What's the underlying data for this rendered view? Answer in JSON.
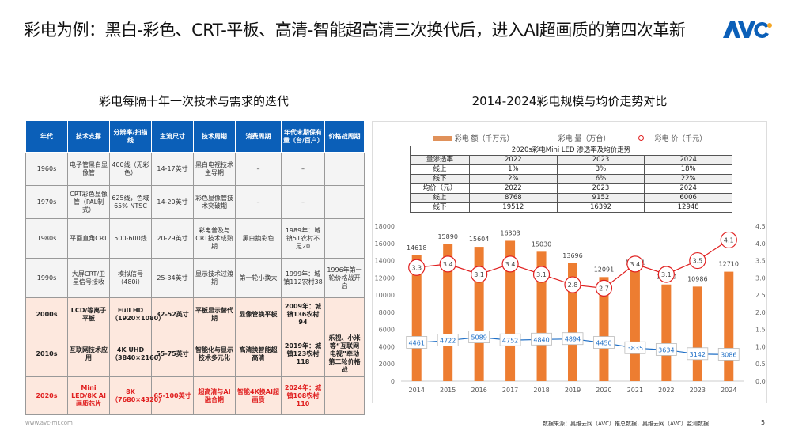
{
  "header": {
    "title": "彩电为例：黑白-彩色、CRT-平板、高清-智能超高清三次换代后，进入AI超画质的第四次革新",
    "logo_text": "AVC",
    "brand_color": "#0b5fb8",
    "logo_dot_color": "#f5a623"
  },
  "left_panel": {
    "subtitle": "彩电每隔十年一次技术与需求的迭代",
    "table": {
      "header_color": "#0b5fb8",
      "columns": [
        "年代",
        "技术支撑",
        "分辨率/扫描线",
        "主流尺寸",
        "技术周期",
        "消费周期",
        "年代末期保有量（台/百户）",
        "价格战周期"
      ],
      "rows": [
        {
          "cells": [
            "1960s",
            "电子管黑白显像管",
            "400线（无彩色）",
            "14-17英寸",
            "黑白电视技术主导期",
            "–",
            "–",
            ""
          ],
          "style": "gray"
        },
        {
          "cells": [
            "1970s",
            "CRT彩色显像管（PAL制式）",
            "625线，色域65% NTSC",
            "14-20英寸",
            "彩色显像管技术突破期",
            "–",
            "–",
            ""
          ],
          "style": "gray"
        },
        {
          "cells": [
            "1980s",
            "平面直角CRT",
            "500-600线",
            "20-29英寸",
            "彩电普及与CRT技术成熟期",
            "黑白换彩色",
            "1989年：城镇51农村不足20",
            ""
          ],
          "style": "gray"
        },
        {
          "cells": [
            "1990s",
            "大屏CRT/卫星信号接收",
            "模拟信号（480i）",
            "25-34英寸",
            "显示技术过渡期",
            "第一轮小换大",
            "1999年：城镇112农村38",
            "1996年第一轮价格战开启"
          ],
          "style": "gray"
        },
        {
          "cells": [
            "2000s",
            "LCD/等离子平板",
            "Full HD（1920×1080）",
            "32-52英寸",
            "平板显示替代期",
            "显像管换平板",
            "2009年：城镇136农村94",
            ""
          ],
          "style": "peach"
        },
        {
          "cells": [
            "2010s",
            "互联网技术应用",
            "4K UHD（3840×2160）",
            "55-75英寸",
            "智能化与显示技术多元化",
            "高清换智能超高清",
            "2019年：城镇123农村118",
            "乐视、小米等“互联网电视”牵动第二轮价格战"
          ],
          "style": "peach"
        },
        {
          "cells": [
            "2020s",
            "Mini LED/8K AI画质芯片",
            "8K（7680×4320）",
            "65-100英寸",
            "超高清与AI融合期",
            "智能4K换AI超画质",
            "2024年：城镇108农村110",
            ""
          ],
          "style": "red"
        }
      ]
    }
  },
  "right_panel": {
    "subtitle": "2014-2024彩电规模与均价走势对比",
    "legend": [
      {
        "label": "彩电 额（千万元）",
        "color": "#e0915a",
        "type": "bar"
      },
      {
        "label": "彩电 量（万台）",
        "color": "#1f6fc6",
        "type": "line"
      },
      {
        "label": "彩电 价（千元）",
        "color": "#e02020",
        "type": "line-marker"
      }
    ],
    "mini_table": {
      "caption": "2020s彩电Mini LED 渗透率及均价走势",
      "rows": [
        [
          "量渗透率",
          "2022",
          "2023",
          "2024"
        ],
        [
          "线上",
          "1%",
          "3%",
          "18%"
        ],
        [
          "线下",
          "2%",
          "6%",
          "22%"
        ],
        [
          "均价（元）",
          "2022",
          "2023",
          "2024"
        ],
        [
          "线上",
          "8768",
          "9152",
          "6006"
        ],
        [
          "线下",
          "19512",
          "16392",
          "12948"
        ]
      ]
    }
  },
  "chart_data": {
    "type": "bar",
    "title": "2014-2024彩电规模与均价走势对比",
    "categories": [
      "2014",
      "2015",
      "2016",
      "2017",
      "2018",
      "2019",
      "2020",
      "2021",
      "2022",
      "2023",
      "2024"
    ],
    "series": [
      {
        "name": "彩电 额（千万元）",
        "type": "bar",
        "axis": "left",
        "color": "#ed7d31",
        "values": [
          14618,
          15890,
          15604,
          16303,
          15030,
          13696,
          12091,
          12891,
          11230,
          10986,
          12710
        ]
      },
      {
        "name": "彩电 量（万台）",
        "type": "line",
        "axis": "left",
        "color": "#1f6fc6",
        "values": [
          4461,
          4722,
          5089,
          4752,
          4840,
          4894,
          4450,
          3835,
          3634,
          3142,
          3086
        ]
      },
      {
        "name": "彩电 价（千元）",
        "type": "line",
        "axis": "right",
        "color": "#e02020",
        "values": [
          3.3,
          3.4,
          3.1,
          3.4,
          3.1,
          2.8,
          2.7,
          3.4,
          3.1,
          3.5,
          4.1
        ]
      }
    ],
    "ylim_left": [
      0,
      18000
    ],
    "yticks_left": [
      "0",
      "2000",
      "4000",
      "6000",
      "8000",
      "10000",
      "12000",
      "14000",
      "16000",
      "18000"
    ],
    "ylim_right": [
      0,
      4.5
    ],
    "yticks_right": [
      "0.0",
      "0.5",
      "1.0",
      "1.5",
      "2.0",
      "2.5",
      "3.0",
      "3.5",
      "4.0",
      "4.5"
    ],
    "xlabel": "",
    "ylabel": "",
    "grid": false,
    "legend_position": "top"
  },
  "footer": {
    "website": "www.avc-mr.com",
    "source": "数据来源：奥维云网（AVC）推总数据，奥维云网（AVC）监测数据",
    "page": "5"
  }
}
